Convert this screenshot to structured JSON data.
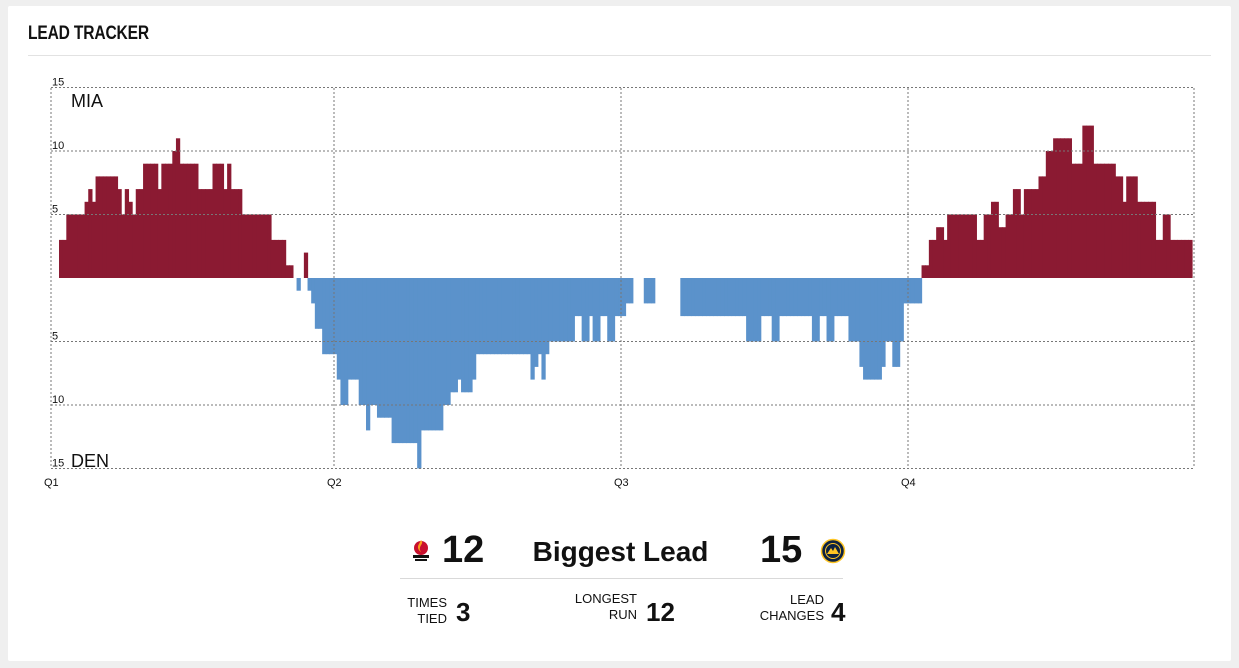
{
  "header": {
    "title": "LEAD TRACKER"
  },
  "chart_data": {
    "type": "area",
    "y_top_label": "MIA",
    "y_bottom_label": "DEN",
    "y_ticks": [
      "15",
      "10",
      "5",
      "5",
      "10",
      "15"
    ],
    "x_ticks": [
      "Q1",
      "Q2",
      "Q3",
      "Q4"
    ],
    "ylim": [
      -15,
      15
    ],
    "grid": true,
    "note": "positive values = MIA lead, negative values = DEN lead; one value per step across four quarters",
    "colors": {
      "mia": "#8b1a32",
      "den": "#5b92cb"
    },
    "series": [
      {
        "name": "lead",
        "values": [
          3,
          3,
          5,
          5,
          5,
          5,
          5,
          6,
          7,
          6,
          8,
          8,
          8,
          8,
          8,
          8,
          7,
          5,
          7,
          6,
          5,
          7,
          7,
          9,
          9,
          9,
          9,
          7,
          9,
          9,
          9,
          10,
          11,
          9,
          9,
          9,
          9,
          9,
          7,
          7,
          7,
          7,
          9,
          9,
          9,
          7,
          9,
          7,
          7,
          7,
          5,
          5,
          5,
          5,
          5,
          5,
          5,
          5,
          3,
          3,
          3,
          3,
          1,
          1,
          0,
          -1,
          0,
          2,
          -1,
          -2,
          -4,
          -4,
          -6,
          -6,
          -6,
          -6,
          -8,
          -10,
          -10,
          -8,
          -8,
          -8,
          -10,
          -10,
          -12,
          -10,
          -10,
          -11,
          -11,
          -11,
          -11,
          -13,
          -13,
          -13,
          -13,
          -13,
          -13,
          -13,
          -15,
          -12,
          -12,
          -12,
          -12,
          -12,
          -12,
          -10,
          -10,
          -9,
          -9,
          -8,
          -9,
          -9,
          -9,
          -8,
          -6,
          -6,
          -6,
          -6,
          -6,
          -6,
          -6,
          -6,
          -6,
          -6,
          -6,
          -6,
          -6,
          -6,
          -6,
          -8,
          -7,
          -6,
          -8,
          -6,
          -5,
          -5,
          -5,
          -5,
          -5,
          -5,
          -5,
          -3,
          -3,
          -5,
          -5,
          -3,
          -5,
          -5,
          -3,
          -3,
          -5,
          -5,
          -3,
          -3,
          -3,
          -2,
          -2,
          0,
          0,
          0,
          -2,
          -2,
          -2,
          0,
          0,
          0,
          0,
          0,
          0,
          0,
          -3,
          -3,
          -3,
          -3,
          -3,
          -3,
          -3,
          -3,
          -3,
          -3,
          -3,
          -3,
          -3,
          -3,
          -3,
          -3,
          -3,
          -3,
          -5,
          -5,
          -5,
          -5,
          -3,
          -3,
          -3,
          -5,
          -5,
          -3,
          -3,
          -3,
          -3,
          -3,
          -3,
          -3,
          -3,
          -3,
          -5,
          -5,
          -3,
          -3,
          -5,
          -5,
          -3,
          -3,
          -3,
          -3,
          -5,
          -5,
          -5,
          -7,
          -8,
          -8,
          -8,
          -8,
          -8,
          -7,
          -5,
          -5,
          -7,
          -7,
          -5,
          -2,
          -2,
          -2,
          -2,
          -2,
          1,
          1,
          3,
          3,
          4,
          4,
          3,
          5,
          5,
          5,
          5,
          5,
          5,
          5,
          5,
          3,
          3,
          5,
          5,
          6,
          6,
          4,
          4,
          5,
          5,
          7,
          7,
          5,
          7,
          7,
          7,
          7,
          8,
          8,
          10,
          10,
          11,
          11,
          11,
          11,
          11,
          9,
          9,
          9,
          12,
          12,
          12,
          9,
          9,
          9,
          9,
          9,
          9,
          8,
          8,
          6,
          8,
          8,
          8,
          6,
          6,
          6,
          6,
          6,
          3,
          3,
          5,
          5,
          3,
          3,
          3,
          3,
          3,
          3
        ]
      }
    ]
  },
  "stats": {
    "biggest_lead_label": "Biggest Lead",
    "mia_biggest_lead": "12",
    "den_biggest_lead": "15",
    "mia_logo_icon": "heat-logo-icon",
    "den_logo_icon": "nuggets-logo-icon",
    "times_tied_label": "TIMES\nTIED",
    "times_tied_value": "3",
    "longest_run_label": "LONGEST\nRUN",
    "longest_run_value": "12",
    "lead_changes_label": "LEAD\nCHANGES",
    "lead_changes_value": "4"
  }
}
